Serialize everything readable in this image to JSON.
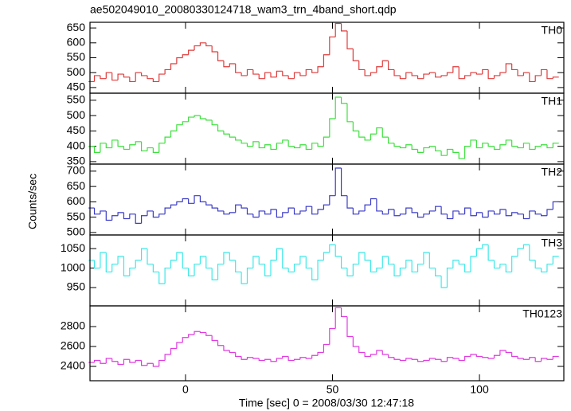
{
  "chart_data": {
    "type": "line",
    "step": true,
    "title": "ae502049010_20080330124718_wam3_trn_4band_short.qdp",
    "x_label": "Time [sec] 0 = 2008/03/30 12:47:18",
    "y_label": "Counts/sec",
    "xlim": [
      -32.5,
      128.7
    ],
    "xticks": [
      0,
      50,
      100
    ],
    "x": [
      -32,
      -30,
      -28,
      -26,
      -24,
      -22,
      -20,
      -18,
      -16,
      -14,
      -12,
      -10,
      -8,
      -6,
      -4,
      -2,
      0,
      2,
      4,
      6,
      8,
      10,
      12,
      14,
      16,
      18,
      20,
      22,
      24,
      26,
      28,
      30,
      32,
      34,
      36,
      38,
      40,
      42,
      44,
      46,
      48,
      50,
      52,
      54,
      56,
      58,
      60,
      62,
      64,
      66,
      68,
      70,
      72,
      74,
      76,
      78,
      80,
      82,
      84,
      86,
      88,
      90,
      92,
      94,
      96,
      98,
      100,
      102,
      104,
      106,
      108,
      110,
      112,
      114,
      116,
      118,
      120,
      122,
      124,
      126
    ],
    "series": [
      {
        "name": "TH0",
        "color": "#e03a3a",
        "ylim": [
          431,
          669
        ],
        "yticks": [
          450,
          500,
          550,
          600,
          650
        ],
        "values": [
          470,
          490,
          480,
          500,
          475,
          495,
          485,
          470,
          500,
          490,
          480,
          470,
          495,
          510,
          530,
          550,
          560,
          575,
          590,
          600,
          590,
          570,
          540,
          520,
          530,
          500,
          490,
          510,
          495,
          480,
          500,
          485,
          505,
          490,
          480,
          500,
          490,
          510,
          500,
          520,
          560,
          620,
          665,
          640,
          580,
          540,
          510,
          490,
          500,
          520,
          540,
          510,
          490,
          480,
          500,
          490,
          480,
          495,
          500,
          485,
          490,
          500,
          520,
          480,
          490,
          500,
          495,
          510,
          480,
          490,
          500,
          530,
          510,
          490,
          500,
          470,
          490,
          510,
          480,
          485
        ]
      },
      {
        "name": "TH1",
        "color": "#3ce03c",
        "ylim": [
          342,
          573
        ],
        "yticks": [
          350,
          400,
          450,
          500,
          550
        ],
        "values": [
          400,
          380,
          410,
          395,
          420,
          400,
          390,
          405,
          415,
          385,
          395,
          380,
          410,
          430,
          450,
          470,
          480,
          495,
          500,
          490,
          485,
          470,
          450,
          440,
          430,
          420,
          410,
          400,
          415,
          395,
          405,
          390,
          410,
          420,
          400,
          395,
          405,
          390,
          410,
          400,
          430,
          490,
          560,
          540,
          480,
          450,
          430,
          420,
          440,
          460,
          430,
          410,
          400,
          395,
          405,
          390,
          380,
          395,
          400,
          385,
          370,
          390,
          380,
          360,
          400,
          420,
          395,
          410,
          400,
          390,
          405,
          420,
          400,
          395,
          410,
          390,
          400,
          405,
          395,
          410
        ]
      },
      {
        "name": "TH2",
        "color": "#3a3ac8",
        "ylim": [
          492,
          723
        ],
        "yticks": [
          500,
          550,
          600,
          650,
          700
        ],
        "values": [
          580,
          560,
          570,
          540,
          555,
          565,
          545,
          560,
          530,
          555,
          570,
          550,
          560,
          580,
          590,
          600,
          610,
          595,
          620,
          600,
          590,
          580,
          570,
          560,
          565,
          590,
          580,
          560,
          550,
          570,
          560,
          575,
          550,
          565,
          580,
          560,
          570,
          585,
          560,
          575,
          590,
          620,
          710,
          620,
          580,
          560,
          570,
          590,
          610,
          570,
          560,
          575,
          555,
          560,
          580,
          565,
          550,
          560,
          570,
          585,
          560,
          545,
          570,
          560,
          580,
          555,
          565,
          550,
          570,
          560,
          575,
          555,
          565,
          560,
          545,
          570,
          560,
          555,
          575,
          600
        ]
      },
      {
        "name": "TH3",
        "color": "#3ce8e8",
        "ylim": [
          903,
          1085
        ],
        "yticks": [
          950,
          1000,
          1050
        ],
        "values": [
          1020,
          1000,
          1040,
          990,
          1010,
          1030,
          980,
          1000,
          1020,
          1050,
          1010,
          990,
          960,
          1000,
          1020,
          1040,
          1000,
          980,
          1010,
          1030,
          1000,
          970,
          1010,
          1040,
          1020,
          990,
          960,
          1000,
          1030,
          1010,
          980,
          1020,
          1050,
          1000,
          990,
          1010,
          1030,
          1000,
          970,
          1020,
          1040,
          1060,
          1030,
          1000,
          980,
          1010,
          1040,
          1020,
          990,
          1000,
          1030,
          1010,
          980,
          1000,
          1020,
          990,
          1010,
          1040,
          1000,
          980,
          950,
          1000,
          1020,
          1010,
          990,
          1030,
          1050,
          1060,
          1020,
          1000,
          1010,
          990,
          1030,
          1050,
          1060,
          1020,
          1000,
          990,
          1010,
          1030
        ]
      },
      {
        "name": "TH0123",
        "color": "#e03ae0",
        "ylim": [
          2256,
          3008
        ],
        "yticks": [
          2400,
          2600,
          2800
        ],
        "values": [
          2440,
          2460,
          2430,
          2480,
          2450,
          2420,
          2470,
          2440,
          2460,
          2410,
          2430,
          2400,
          2460,
          2520,
          2580,
          2640,
          2690,
          2720,
          2750,
          2740,
          2710,
          2660,
          2610,
          2560,
          2540,
          2500,
          2470,
          2490,
          2480,
          2460,
          2470,
          2450,
          2480,
          2500,
          2460,
          2470,
          2490,
          2480,
          2510,
          2540,
          2620,
          2780,
          2990,
          2900,
          2700,
          2600,
          2540,
          2500,
          2520,
          2560,
          2520,
          2490,
          2470,
          2460,
          2480,
          2470,
          2450,
          2460,
          2480,
          2470,
          2450,
          2490,
          2480,
          2460,
          2500,
          2520,
          2500,
          2490,
          2480,
          2510,
          2560,
          2540,
          2500,
          2480,
          2470,
          2490,
          2450,
          2480,
          2470,
          2500
        ]
      }
    ]
  }
}
